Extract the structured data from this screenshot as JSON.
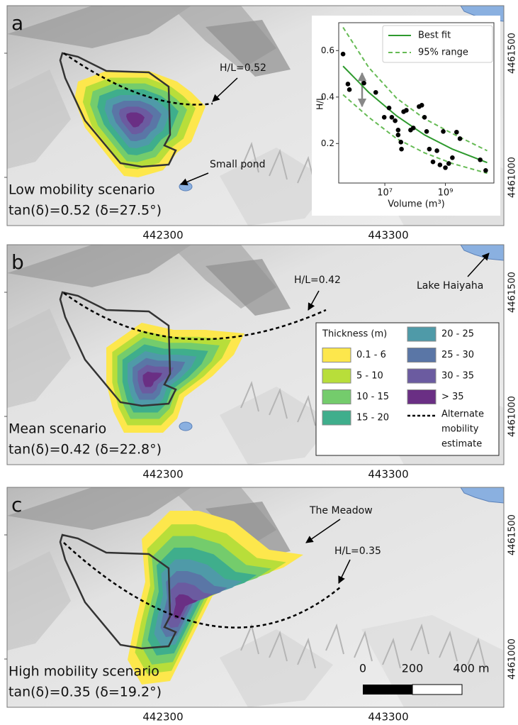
{
  "panels": [
    {
      "label": "a",
      "scenario": "Low mobility scenario",
      "friction": "tan(δ)=0.52 (δ=27.5°)",
      "annotations": [
        "H/L=0.52",
        "Small pond"
      ],
      "eastings": [
        442300,
        443300
      ],
      "northings": [
        4461500,
        4461000
      ]
    },
    {
      "label": "b",
      "scenario": "Mean scenario",
      "friction": "tan(δ)=0.42 (δ=22.8°)",
      "annotations": [
        "H/L=0.42",
        "Lake Haiyaha"
      ],
      "eastings": [
        442300,
        443300
      ],
      "northings": [
        4461500,
        4461000
      ]
    },
    {
      "label": "c",
      "scenario": "High mobility scenario",
      "friction": "tan(δ)=0.35 (δ=19.2°)",
      "annotations": [
        "The Meadow",
        "H/L=0.35"
      ],
      "eastings": [
        442300,
        443300
      ],
      "northings": [
        4461500,
        4461000
      ]
    }
  ],
  "legend": {
    "title": "Thickness (m)",
    "items": [
      {
        "label": "0.1 - 6",
        "color": "#fde74c"
      },
      {
        "label": "5 - 10",
        "color": "#b8de3a"
      },
      {
        "label": "10 - 15",
        "color": "#74cc6c"
      },
      {
        "label": "15 - 20",
        "color": "#3fae8c"
      },
      {
        "label": "20 - 25",
        "color": "#4f9aa8"
      },
      {
        "label": "25 - 30",
        "color": "#5a76a6"
      },
      {
        "label": "30 - 35",
        "color": "#6b5ba0"
      },
      {
        "label": "> 35",
        "color": "#6a2f84"
      }
    ],
    "line": [
      "Alternate",
      "mobility",
      "estimate"
    ]
  },
  "scale_bar": {
    "labels": [
      "0",
      "200",
      "400 m"
    ]
  },
  "chart_data": {
    "type": "scatter",
    "xlabel": "Volume (m³)",
    "ylabel": "H/L",
    "log_x": true,
    "xlim": [
      300000,
      40000000000
    ],
    "ylim": [
      0.03,
      0.72
    ],
    "xticks": [
      {
        "value": 10000000,
        "label": "10⁷"
      },
      {
        "value": 1000000000,
        "label": "10⁹"
      }
    ],
    "yticks": [
      0.2,
      0.4,
      0.6
    ],
    "points": {
      "color": "#000000",
      "x": [
        417000,
        603000,
        676000,
        2040000,
        5010000,
        9550000,
        13800000,
        17000000,
        21900000,
        27500000,
        27500000,
        33900000,
        35500000,
        41700000,
        51300000,
        70800000,
        87100000,
        135000000,
        166000000,
        204000000,
        240000000,
        295000000,
        389000000,
        525000000,
        661000000,
        851000000,
        1000000000,
        1290000000,
        1700000000,
        2340000000,
        3020000000,
        14100000000,
        21400000000
      ],
      "y": [
        0.585,
        0.456,
        0.432,
        0.46,
        0.42,
        0.313,
        0.353,
        0.313,
        0.298,
        0.258,
        0.237,
        0.206,
        0.176,
        0.337,
        0.343,
        0.258,
        0.267,
        0.359,
        0.365,
        0.313,
        0.252,
        0.176,
        0.121,
        0.169,
        0.108,
        0.252,
        0.096,
        0.114,
        0.139,
        0.249,
        0.221,
        0.13,
        0.084
      ]
    },
    "series": [
      {
        "name": "Best fit",
        "color": "#2e9a2e",
        "dashed": false,
        "x": [
          417000,
          2950000,
          24500000,
          204000000,
          1700000000,
          24000000000
        ],
        "values": [
          0.533,
          0.42,
          0.319,
          0.237,
          0.176,
          0.118
        ]
      },
      {
        "name": "95% range",
        "color": "#66bb55",
        "dashed": true,
        "x": [
          417000,
          2950000,
          24500000,
          204000000,
          1700000000,
          24000000000
        ],
        "values": [
          0.7,
          0.527,
          0.395,
          0.307,
          0.243,
          0.169
        ],
        "lower": [
          0.41,
          0.313,
          0.221,
          0.16,
          0.114,
          0.072
        ]
      }
    ]
  }
}
